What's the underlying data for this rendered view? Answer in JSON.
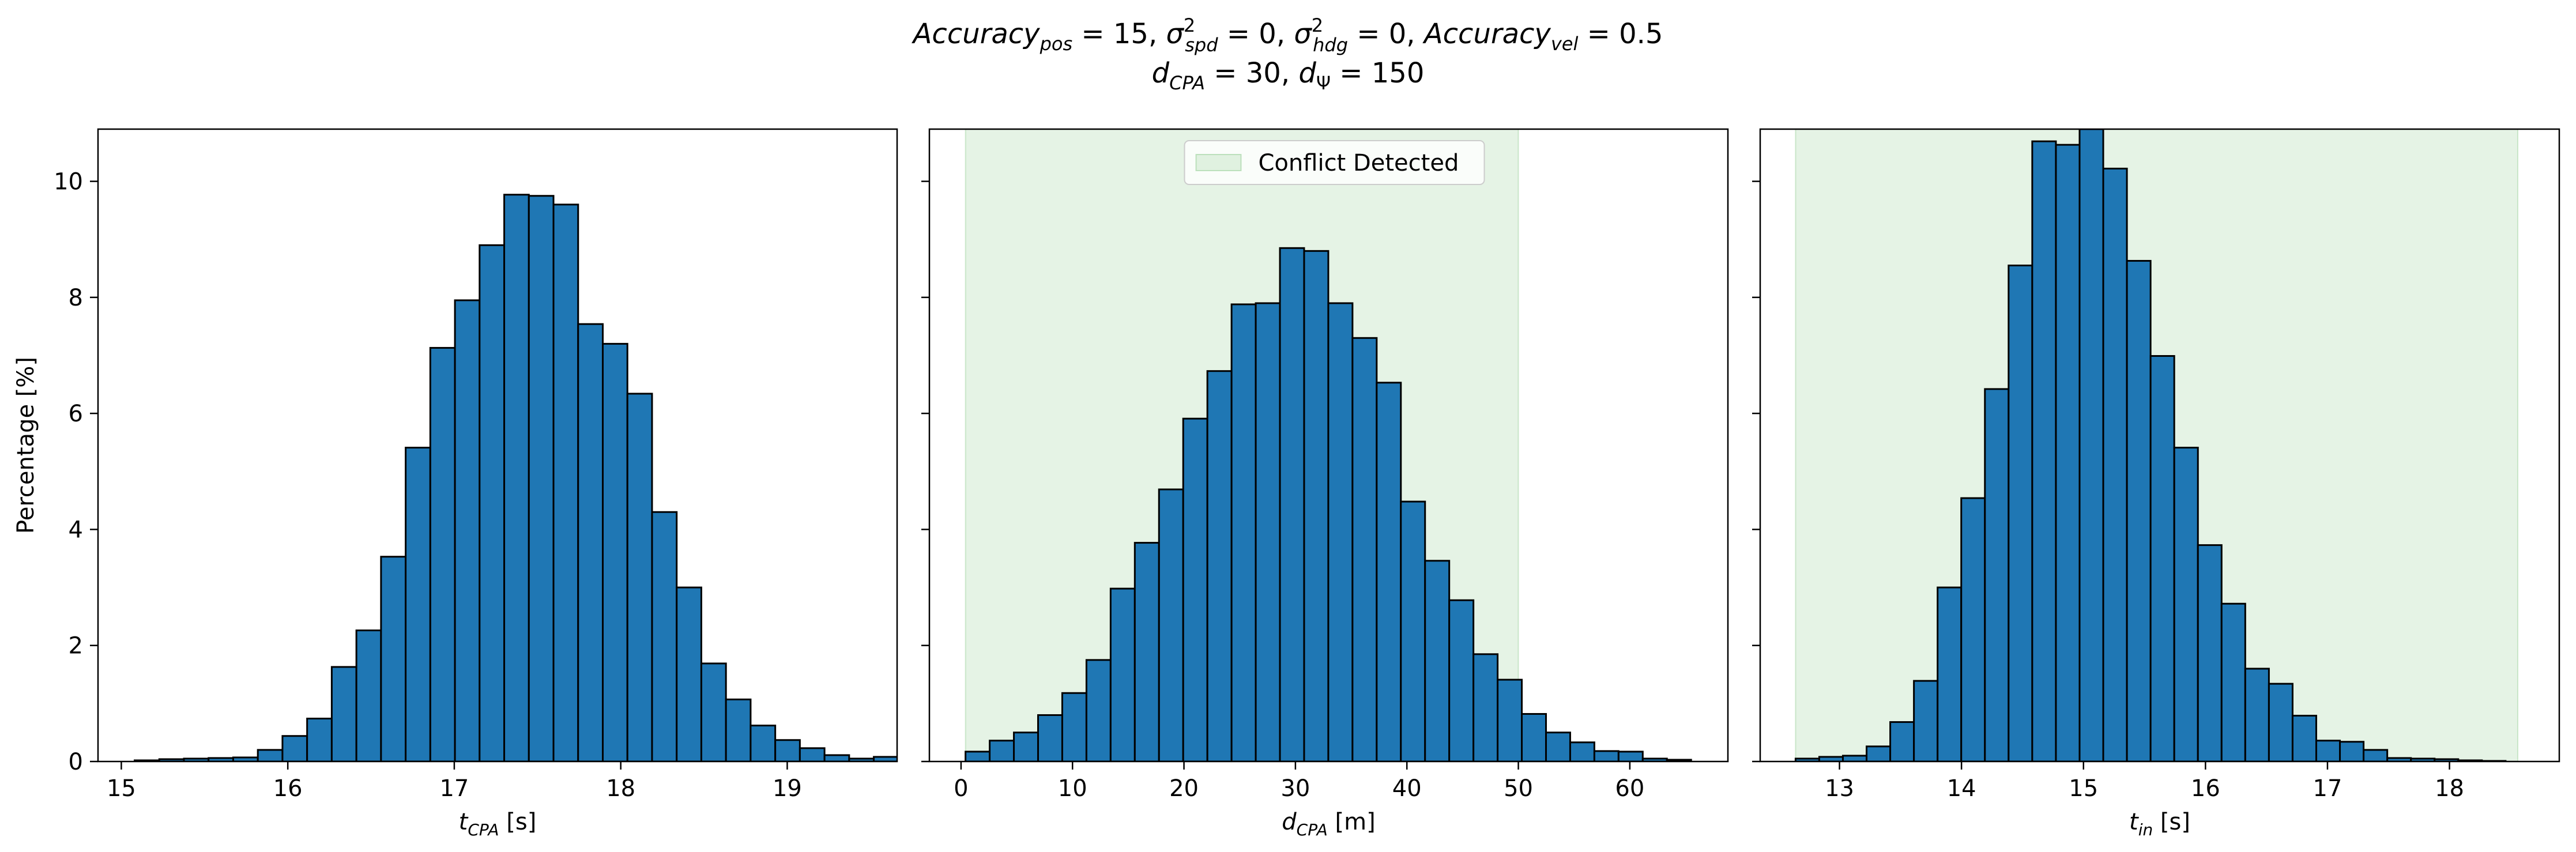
{
  "figure": {
    "title_line1": {
      "acc_pos_base": "Accuracy",
      "acc_pos_sub": "pos",
      "acc_pos_value": " = 15, ",
      "sigma_spd_base": "σ",
      "sigma_spd_sup": "2",
      "sigma_spd_sub": "spd",
      "sigma_spd_value": " = 0, ",
      "sigma_hdg_base": "σ",
      "sigma_hdg_sup": "2",
      "sigma_hdg_sub": "hdg",
      "sigma_hdg_value": " = 0, ",
      "acc_vel_base": "Accuracy",
      "acc_vel_sub": "vel",
      "acc_vel_value": " = 0.5"
    },
    "title_line2": {
      "dcpa_base": "d",
      "dcpa_sub": "CPA",
      "dcpa_value": " = 30, ",
      "dpsi_base": "d",
      "dpsi_sub": "Ψ",
      "dpsi_value": " = 150"
    }
  },
  "chart_data": [
    {
      "type": "bar",
      "name": "tcpa-histogram",
      "xlabel_base": "t",
      "xlabel_sub": "CPA",
      "xlabel_unit": " [s]",
      "ylabel": "Percentage [%]",
      "xlim": [
        14.86,
        19.66
      ],
      "ylim": [
        0,
        10.9
      ],
      "bin_start": 15.08,
      "bin_width": 0.148,
      "values": [
        0.02,
        0.04,
        0.05,
        0.06,
        0.07,
        0.2,
        0.44,
        0.74,
        1.63,
        2.26,
        3.53,
        5.41,
        7.13,
        7.95,
        8.9,
        9.77,
        9.75,
        9.6,
        7.54,
        7.2,
        6.34,
        4.3,
        3.0,
        1.69,
        1.07,
        0.62,
        0.37,
        0.23,
        0.11,
        0.05,
        0.08
      ],
      "xticks": [
        15,
        16,
        17,
        18,
        19
      ],
      "yticks": [
        0,
        2,
        4,
        6,
        8,
        10
      ],
      "bar_color": "#1f77b4",
      "edge_color": "#000000"
    },
    {
      "type": "bar",
      "name": "dcpa-histogram",
      "xlabel_base": "d",
      "xlabel_sub": "CPA",
      "xlabel_unit": " [m]",
      "xlim": [
        -2.84,
        68.8
      ],
      "ylim": [
        0,
        10.9
      ],
      "bin_start": 0.4,
      "bin_width": 2.17,
      "values": [
        0.17,
        0.36,
        0.5,
        0.8,
        1.18,
        1.75,
        2.98,
        3.77,
        4.69,
        5.91,
        6.73,
        7.88,
        7.9,
        8.85,
        8.8,
        7.9,
        7.3,
        6.53,
        4.48,
        3.46,
        2.78,
        1.85,
        1.41,
        0.82,
        0.5,
        0.33,
        0.18,
        0.17,
        0.05,
        0.03
      ],
      "xticks": [
        0,
        10,
        20,
        30,
        40,
        50,
        60
      ],
      "yticks": [
        0,
        2,
        4,
        6,
        8,
        10
      ],
      "region": [
        0.4,
        50
      ],
      "region_color": "#2ca02c",
      "legend": "Conflict Detected",
      "legend_position": "upper-center",
      "bar_color": "#1f77b4",
      "edge_color": "#000000"
    },
    {
      "type": "bar",
      "name": "tin-histogram",
      "xlabel_base": "t",
      "xlabel_sub": "in",
      "xlabel_unit": " [s]",
      "xlim": [
        12.35,
        18.9
      ],
      "ylim": [
        0,
        10.9
      ],
      "bin_start": 12.64,
      "bin_width": 0.194,
      "values": [
        0.05,
        0.08,
        0.1,
        0.26,
        0.68,
        1.39,
        3.0,
        4.54,
        6.42,
        8.55,
        10.69,
        10.63,
        10.9,
        10.22,
        8.63,
        6.99,
        5.41,
        3.73,
        2.72,
        1.6,
        1.34,
        0.79,
        0.36,
        0.34,
        0.2,
        0.06,
        0.05,
        0.04,
        0.02,
        0.01
      ],
      "xticks": [
        13,
        14,
        15,
        16,
        17,
        18
      ],
      "yticks": [
        0,
        2,
        4,
        6,
        8,
        10
      ],
      "region": [
        12.64,
        18.56
      ],
      "region_color": "#2ca02c",
      "bar_color": "#1f77b4",
      "edge_color": "#000000"
    }
  ]
}
